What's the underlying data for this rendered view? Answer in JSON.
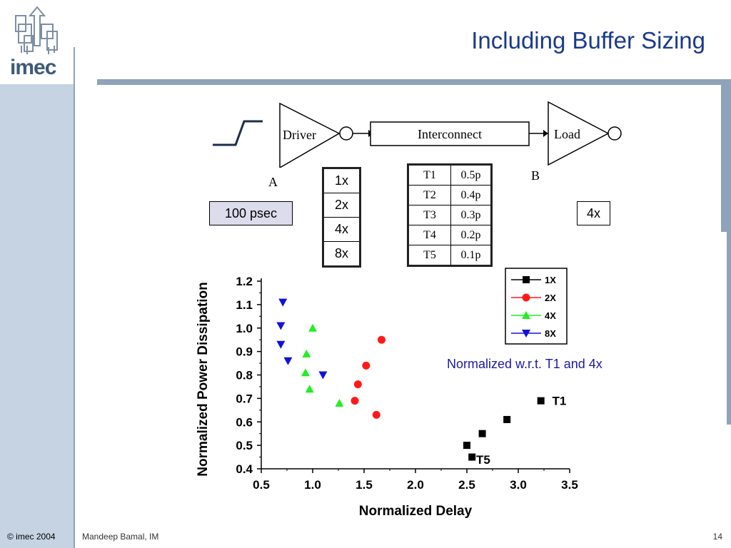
{
  "slide": {
    "title": "Including Buffer Sizing",
    "logo_text": "imec",
    "footer_copyright": "© imec 2004",
    "footer_author": "Mandeep Bamal, IM",
    "page_number": "14"
  },
  "circuit": {
    "driver_label": "Driver",
    "interconnect_label": "Interconnect",
    "load_label": "Load",
    "node_a": "A",
    "node_b": "B",
    "input_delay": "100 psec",
    "load_size": "4x",
    "driver_sizes": [
      "1x",
      "2x",
      "4x",
      "8x"
    ],
    "rise_times": [
      {
        "name": "T1",
        "value": "0.5p"
      },
      {
        "name": "T2",
        "value": "0.4p"
      },
      {
        "name": "T3",
        "value": "0.3p"
      },
      {
        "name": "T4",
        "value": "0.2p"
      },
      {
        "name": "T5",
        "value": "0.1p"
      }
    ]
  },
  "note": "Normalized w.r.t. T1 and 4x",
  "chart_data": {
    "type": "scatter",
    "xlabel": "Normalized Delay",
    "ylabel": "Normalized Power Dissipation",
    "xlim": [
      0.5,
      3.5
    ],
    "ylim": [
      0.4,
      1.2
    ],
    "xticks": [
      "0.5",
      "1.0",
      "1.5",
      "2.0",
      "2.5",
      "3.0",
      "3.5"
    ],
    "yticks": [
      "0.4",
      "0.5",
      "0.6",
      "0.7",
      "0.8",
      "0.9",
      "1.0",
      "1.1",
      "1.2"
    ],
    "grid": false,
    "legend_position": "top-right",
    "annotations": [
      {
        "text": "T1",
        "x": 3.33,
        "y": 0.69
      },
      {
        "text": "T5",
        "x": 2.59,
        "y": 0.44
      }
    ],
    "series": [
      {
        "name": "1X",
        "color": "#000000",
        "marker": "square",
        "x": [
          3.22,
          2.89,
          2.65,
          2.55,
          2.5
        ],
        "y": [
          0.69,
          0.61,
          0.55,
          0.45,
          0.5
        ]
      },
      {
        "name": "2X",
        "color": "#ff1a1a",
        "marker": "circle",
        "x": [
          1.67,
          1.52,
          1.44,
          1.41,
          1.62
        ],
        "y": [
          0.95,
          0.84,
          0.76,
          0.69,
          0.63
        ]
      },
      {
        "name": "4X",
        "color": "#22ee22",
        "marker": "triangle-up",
        "x": [
          1.0,
          0.94,
          0.93,
          0.97,
          1.26
        ],
        "y": [
          1.0,
          0.89,
          0.81,
          0.74,
          0.68
        ]
      },
      {
        "name": "8X",
        "color": "#1111dd",
        "marker": "triangle-down",
        "x": [
          0.71,
          0.69,
          0.69,
          0.76,
          1.1
        ],
        "y": [
          1.11,
          1.01,
          0.93,
          0.86,
          0.8
        ]
      }
    ]
  },
  "colors": {
    "title": "#1a3a8c",
    "sidebar": "#c5d3e3",
    "rule": "#8fa3ba",
    "note": "#1a1aa8"
  }
}
